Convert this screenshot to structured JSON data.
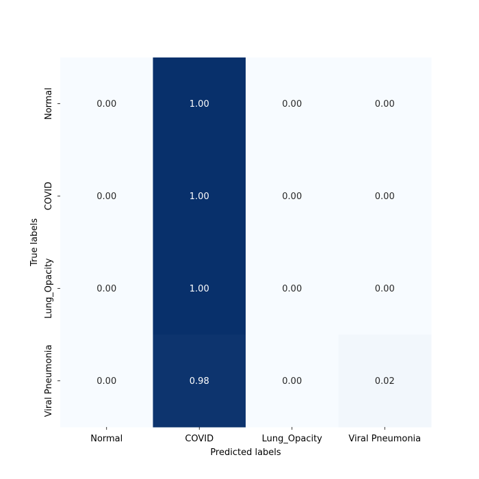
{
  "chart_data": {
    "type": "heatmap",
    "title": "",
    "xlabel": "Predicted labels",
    "ylabel": "True labels",
    "x_categories": [
      "Normal",
      "COVID",
      "Lung_Opacity",
      "Viral Pneumonia"
    ],
    "y_categories": [
      "Normal",
      "COVID",
      "Lung_Opacity",
      "Viral Pneumonia"
    ],
    "values": [
      [
        0.0,
        1.0,
        0.0,
        0.0
      ],
      [
        0.0,
        1.0,
        0.0,
        0.0
      ],
      [
        0.0,
        1.0,
        0.0,
        0.0
      ],
      [
        0.0,
        0.98,
        0.0,
        0.02
      ]
    ],
    "value_format": "2 decimals",
    "colormap": "Blues",
    "color_low": "#f7fbff",
    "color_high": "#08306b",
    "text_color_dark": "#262626",
    "text_color_light": "#ffffff",
    "colorbar": false,
    "grid": false
  }
}
